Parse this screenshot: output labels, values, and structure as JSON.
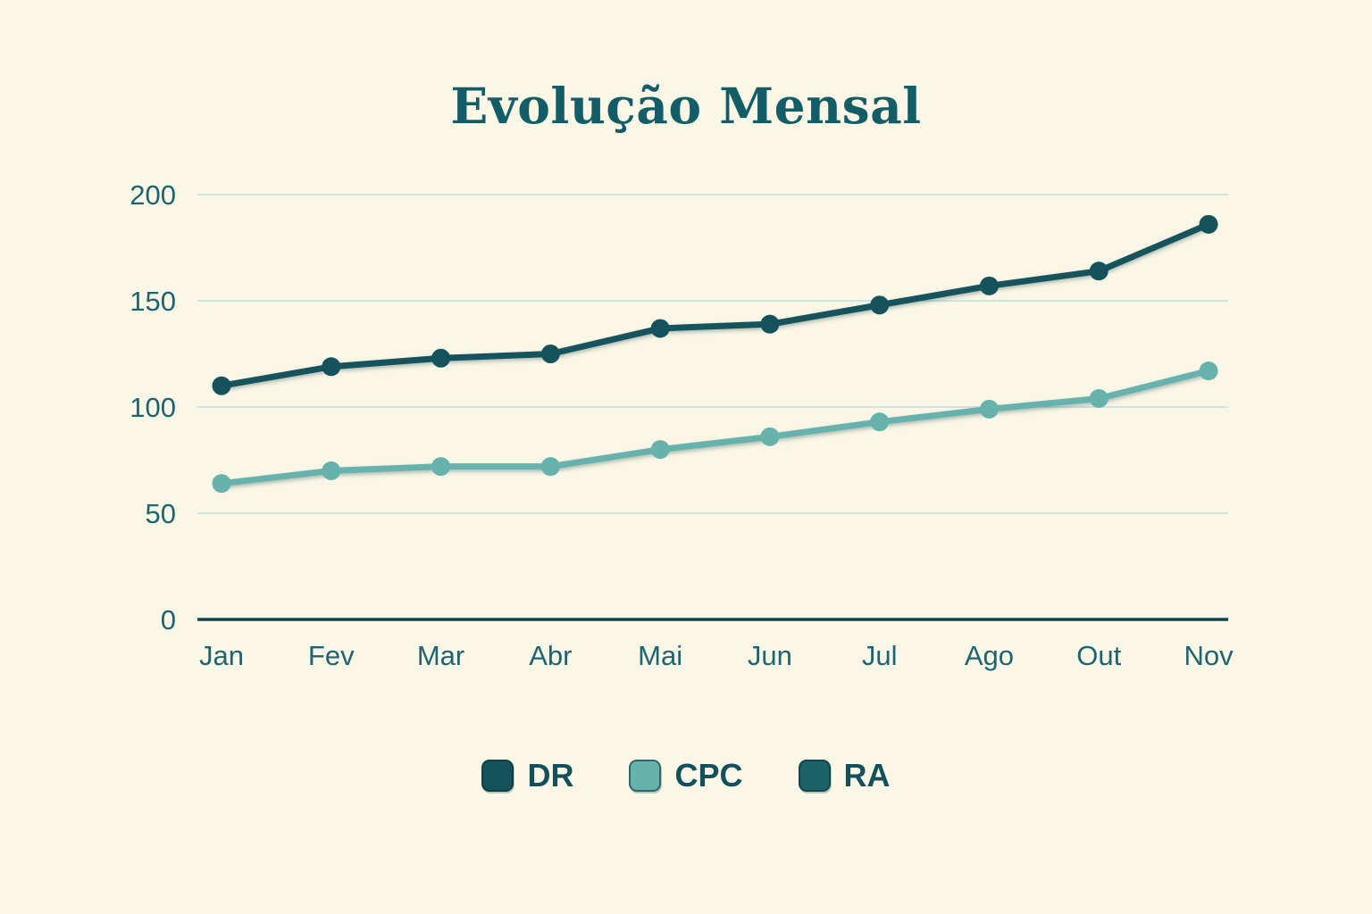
{
  "chart_data": {
    "type": "line",
    "title": "Evolução Mensal",
    "x_categories": [
      "Jan",
      "Fev",
      "Mar",
      "Abr",
      "Mai",
      "Jun",
      "Jul",
      "Ago",
      "Out",
      "Nov"
    ],
    "series": [
      {
        "name": "DR",
        "color": "#16525C",
        "values": [
          110,
          119,
          123,
          125,
          137,
          139,
          148,
          157,
          164,
          186
        ]
      },
      {
        "name": "CPC",
        "color": "#68B2AE",
        "values": [
          64,
          70,
          72,
          72,
          80,
          86,
          93,
          99,
          104,
          117
        ]
      },
      {
        "name": "RA",
        "color": "#1D6169",
        "values": null
      }
    ],
    "ylim": [
      0,
      200
    ],
    "yticks": [
      0,
      50,
      100,
      150,
      200
    ],
    "grid": true,
    "legend_position": "bottom",
    "colors": {
      "background": "#FBF7E6",
      "gridline": "#B7D8D8",
      "axis_line": "#0D4650",
      "tick_label": "#1E6370",
      "title": "#135D66",
      "legend_label": "#14505C"
    }
  }
}
